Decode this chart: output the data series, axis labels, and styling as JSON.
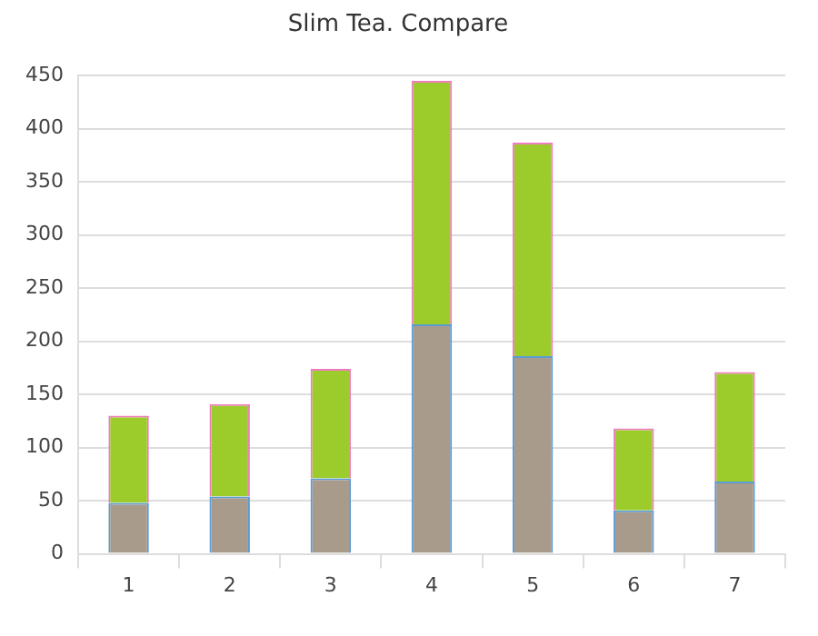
{
  "chart_data": {
    "type": "bar",
    "title": "Slim Tea. Compare",
    "stacked": true,
    "categories": [
      "1",
      "2",
      "3",
      "4",
      "5",
      "6",
      "7"
    ],
    "series": [
      {
        "color": "#a99b8b",
        "values": [
          48,
          54,
          71,
          216,
          186,
          41,
          68
        ]
      },
      {
        "color": "#9ccc2c",
        "values": [
          82,
          87,
          103,
          229,
          201,
          77,
          103
        ]
      }
    ],
    "ylim": [
      0,
      450
    ],
    "yticks": [
      0,
      50,
      100,
      150,
      200,
      250,
      300,
      350,
      400,
      450
    ],
    "grid": true
  }
}
